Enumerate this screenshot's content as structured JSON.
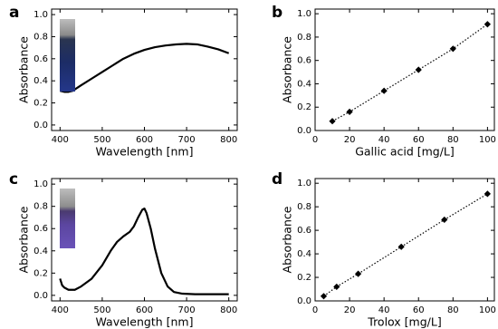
{
  "chart_data": [
    {
      "type": "line",
      "panel_label": "a",
      "x_label": "Wavelength [nm]",
      "y_label": "Absorbance",
      "color": "#000000",
      "x": [
        400,
        410,
        420,
        430,
        450,
        475,
        500,
        525,
        550,
        575,
        600,
        625,
        650,
        675,
        700,
        725,
        750,
        775,
        800
      ],
      "values": [
        0.31,
        0.3,
        0.3,
        0.31,
        0.36,
        0.42,
        0.48,
        0.54,
        0.6,
        0.645,
        0.68,
        0.705,
        0.72,
        0.73,
        0.735,
        0.73,
        0.71,
        0.685,
        0.65
      ],
      "xlim": [
        380,
        820
      ],
      "ylim": [
        -0.05,
        1.05
      ],
      "xticks": [
        400,
        500,
        600,
        700,
        800
      ],
      "yticks": [
        {
          "value": 0,
          "label": "0.0"
        },
        {
          "value": 0.2,
          "label": "0.2"
        },
        {
          "value": 0.4,
          "label": "0.4"
        },
        {
          "value": 0.6,
          "label": "0.6"
        },
        {
          "value": 0.8,
          "label": "0.8"
        },
        {
          "value": 1,
          "label": "1.0"
        }
      ]
    },
    {
      "type": "scatter",
      "panel_label": "b",
      "x_label": "Gallic acid [mg/L]",
      "y_label": "Absorbance",
      "color": "#000000",
      "x": [
        10,
        20,
        40,
        60,
        80,
        100
      ],
      "values": [
        0.08,
        0.16,
        0.34,
        0.52,
        0.7,
        0.91
      ],
      "xlim": [
        0,
        104
      ],
      "ylim": [
        0,
        1.04
      ],
      "xticks": [
        0,
        20,
        40,
        60,
        80,
        100
      ],
      "yticks": [
        {
          "value": 0,
          "label": "0.0"
        },
        {
          "value": 0.2,
          "label": "0.2"
        },
        {
          "value": 0.4,
          "label": "0.4"
        },
        {
          "value": 0.6,
          "label": "0.6"
        },
        {
          "value": 0.8,
          "label": "0.8"
        },
        {
          "value": 1,
          "label": "1.0"
        }
      ]
    },
    {
      "type": "line",
      "panel_label": "c",
      "x_label": "Wavelength [nm]",
      "y_label": "Absorbance",
      "color": "#000000",
      "x": [
        400,
        405,
        410,
        420,
        435,
        450,
        475,
        500,
        520,
        535,
        550,
        565,
        575,
        585,
        595,
        600,
        605,
        615,
        625,
        640,
        655,
        670,
        690,
        720,
        760,
        800
      ],
      "values": [
        0.15,
        0.09,
        0.07,
        0.05,
        0.05,
        0.08,
        0.15,
        0.27,
        0.4,
        0.48,
        0.53,
        0.57,
        0.62,
        0.7,
        0.77,
        0.78,
        0.74,
        0.6,
        0.42,
        0.2,
        0.08,
        0.03,
        0.015,
        0.01,
        0.01,
        0.01
      ],
      "xlim": [
        380,
        820
      ],
      "ylim": [
        -0.05,
        1.05
      ],
      "xticks": [
        400,
        500,
        600,
        700,
        800
      ],
      "yticks": [
        {
          "value": 0,
          "label": "0.0"
        },
        {
          "value": 0.2,
          "label": "0.2"
        },
        {
          "value": 0.4,
          "label": "0.4"
        },
        {
          "value": 0.6,
          "label": "0.6"
        },
        {
          "value": 0.8,
          "label": "0.8"
        },
        {
          "value": 1,
          "label": "1.0"
        }
      ]
    },
    {
      "type": "scatter",
      "panel_label": "d",
      "x_label": "Trolox [mg/L]",
      "y_label": "Absorbance",
      "color": "#000000",
      "x": [
        5,
        12.5,
        25,
        50,
        75,
        100
      ],
      "values": [
        0.04,
        0.12,
        0.23,
        0.46,
        0.69,
        0.91
      ],
      "xlim": [
        0,
        104
      ],
      "ylim": [
        0,
        1.04
      ],
      "xticks": [
        0,
        20,
        40,
        60,
        80,
        100
      ],
      "yticks": [
        {
          "value": 0,
          "label": "0.0"
        },
        {
          "value": 0.2,
          "label": "0.2"
        },
        {
          "value": 0.4,
          "label": "0.4"
        },
        {
          "value": 0.6,
          "label": "0.6"
        },
        {
          "value": 0.8,
          "label": "0.8"
        },
        {
          "value": 1,
          "label": "1.0"
        }
      ]
    }
  ]
}
